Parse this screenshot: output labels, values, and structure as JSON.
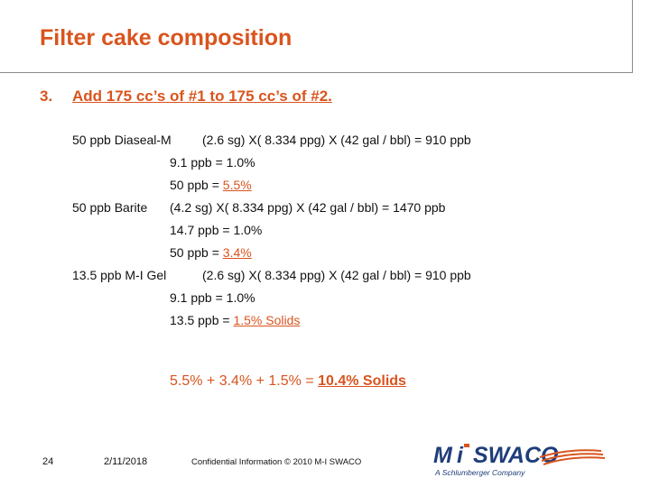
{
  "title": "Filter cake composition",
  "step": {
    "number": "3.",
    "text": "Add 175 cc’s of #1 to 175 cc’s of #2."
  },
  "lines": {
    "l1_name": "50 ppb Diaseal-M",
    "l1_formula": "(2.6 sg) X( 8.334 ppg) X (42 gal / bbl) = 910 ppb",
    "l2": "9.1 ppb = 1.0%",
    "l3_prefix": "50 ppb = ",
    "l3_value": "5.5%",
    "l4_name": "50 ppb Barite",
    "l4_formula": "(4.2 sg) X( 8.334 ppg) X (42 gal / bbl) = 1470 ppb",
    "l5": "14.7 ppb = 1.0%",
    "l6_prefix": "50 ppb = ",
    "l6_value": "3.4%",
    "l7_name": "13.5 ppb M-I Gel",
    "l7_formula": "(2.6 sg) X( 8.334 ppg) X (42 gal / bbl) = 910 ppb",
    "l8": "9.1 ppb = 1.0%",
    "l9_prefix": "13.5  ppb = ",
    "l9_value": "1.5% Solids"
  },
  "summary": {
    "prefix": "5.5% + 3.4% + 1.5% = ",
    "total": "10.4% Solids"
  },
  "footer": {
    "page_number": "24",
    "date": "2/11/2018",
    "confidential": "Confidential Information  © 2010 M-I SWACO"
  },
  "logo": {
    "brand": "M-I SWACO",
    "tagline": "A Schlumberger Company"
  },
  "colors": {
    "accent": "#d9541e",
    "logo_blue": "#1f3d7a"
  }
}
